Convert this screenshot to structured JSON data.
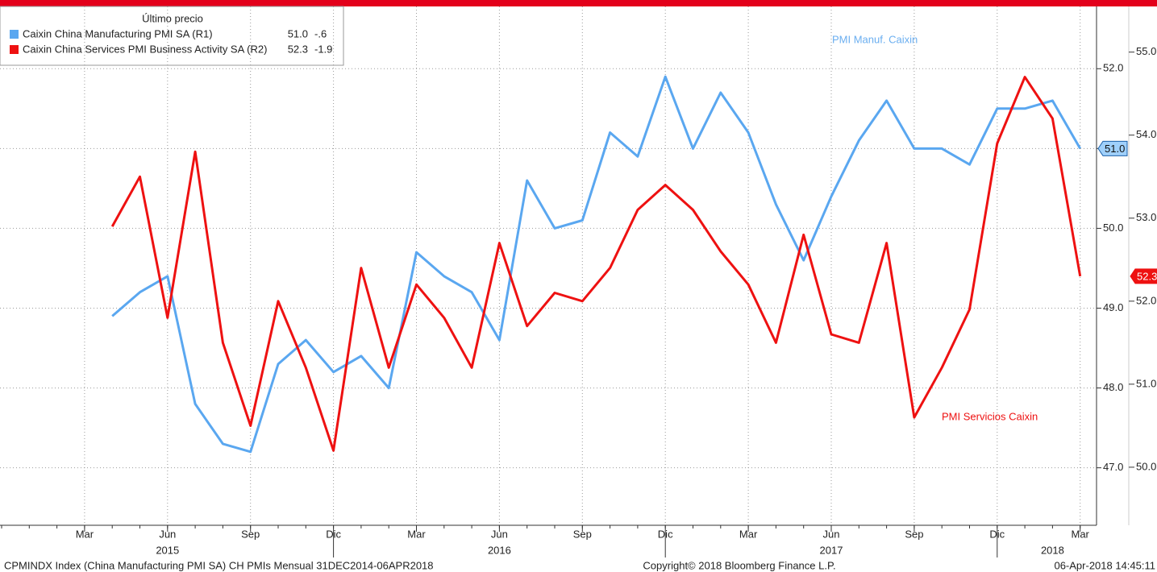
{
  "chart_data": {
    "type": "line",
    "legend_title": "Último precio",
    "annotations": [
      {
        "text": "PMI Manuf. Caixin",
        "color": "#6aaef0"
      },
      {
        "text": "PMI Servicios Caixin",
        "color": "#ee1111"
      }
    ],
    "footer": [
      "CPMINDX Index (China Manufacturing PMI SA) CH PMIs  Mensual 31DEC2014-06APR2018",
      "Copyright© 2018 Bloomberg Finance L.P.",
      "06-Apr-2018 14:45:11"
    ],
    "x": [
      "2015-04",
      "2015-05",
      "2015-06",
      "2015-07",
      "2015-08",
      "2015-09",
      "2015-10",
      "2015-11",
      "2015-12",
      "2016-01",
      "2016-02",
      "2016-03",
      "2016-04",
      "2016-05",
      "2016-06",
      "2016-07",
      "2016-08",
      "2016-09",
      "2016-10",
      "2016-11",
      "2016-12",
      "2017-01",
      "2017-02",
      "2017-03",
      "2017-04",
      "2017-05",
      "2017-06",
      "2017-07",
      "2017-08",
      "2017-09",
      "2017-10",
      "2017-11",
      "2017-12",
      "2018-01",
      "2018-02",
      "2018-03"
    ],
    "xlim": [
      "2014-12",
      "2018-04"
    ],
    "xticks": [
      {
        "value": "2015-03",
        "label": "Mar"
      },
      {
        "value": "2015-06",
        "label": "Jun"
      },
      {
        "value": "2015-09",
        "label": "Sep"
      },
      {
        "value": "2015-12",
        "label": "Dic"
      },
      {
        "value": "2016-03",
        "label": "Mar"
      },
      {
        "value": "2016-06",
        "label": "Jun"
      },
      {
        "value": "2016-09",
        "label": "Sep"
      },
      {
        "value": "2016-12",
        "label": "Dic"
      },
      {
        "value": "2017-03",
        "label": "Mar"
      },
      {
        "value": "2017-06",
        "label": "Jun"
      },
      {
        "value": "2017-09",
        "label": "Sep"
      },
      {
        "value": "2017-12",
        "label": "Dic"
      },
      {
        "value": "2018-03",
        "label": "Mar"
      }
    ],
    "year_labels": [
      {
        "value": "2015-06",
        "label": "2015"
      },
      {
        "value": "2016-06",
        "label": "2016"
      },
      {
        "value": "2017-06",
        "label": "2017"
      },
      {
        "value": "2018-02",
        "label": "2018"
      }
    ],
    "ylim": [
      46.3,
      52.78
    ],
    "yticks": [
      {
        "value": 47,
        "label": "47.0"
      },
      {
        "value": 48,
        "label": "48.0"
      },
      {
        "value": 49,
        "label": "49.0"
      },
      {
        "value": 50,
        "label": "50.0"
      },
      {
        "value": 51,
        "label": "51.0"
      },
      {
        "value": 52,
        "label": "52.0"
      }
    ],
    "y2lim": [
      49.32,
      55.55
    ],
    "y2ticks": [
      {
        "value": 50,
        "label": "50.0"
      },
      {
        "value": 51,
        "label": "51.0"
      },
      {
        "value": 52,
        "label": "52.0"
      },
      {
        "value": 53,
        "label": "53.0"
      },
      {
        "value": 54,
        "label": "54.0"
      },
      {
        "value": 55,
        "label": "55.0"
      }
    ],
    "grid": true,
    "series": [
      {
        "name": "Caixin China Manufacturing PMI SA  (R1)",
        "color": "#5aa7f0",
        "legend_last": "51.0",
        "legend_change": "-.6",
        "values": [
          48.9,
          49.2,
          49.4,
          47.8,
          47.3,
          47.2,
          48.3,
          48.6,
          48.2,
          48.4,
          48.0,
          49.7,
          49.4,
          49.2,
          48.6,
          50.6,
          50.0,
          50.1,
          51.2,
          50.9,
          51.9,
          51.0,
          51.7,
          51.2,
          50.3,
          49.6,
          50.4,
          51.1,
          51.6,
          51.0,
          51.0,
          50.8,
          51.5,
          51.5,
          51.6,
          51.0
        ]
      },
      {
        "name": "Caixin China Services PMI Business Activity SA  (R2)",
        "color": "#ee1111",
        "axis": "y2",
        "legend_last": "52.3",
        "legend_change": "-1.9",
        "values": [
          52.9,
          53.5,
          51.8,
          53.8,
          51.5,
          50.5,
          52.0,
          51.2,
          50.2,
          52.4,
          51.2,
          52.2,
          51.8,
          51.2,
          52.7,
          51.7,
          52.1,
          52.0,
          52.4,
          53.1,
          53.4,
          53.1,
          52.6,
          52.2,
          51.5,
          52.8,
          51.6,
          51.5,
          52.7,
          50.6,
          51.2,
          51.9,
          53.9,
          54.7,
          54.2,
          52.3
        ]
      }
    ]
  }
}
